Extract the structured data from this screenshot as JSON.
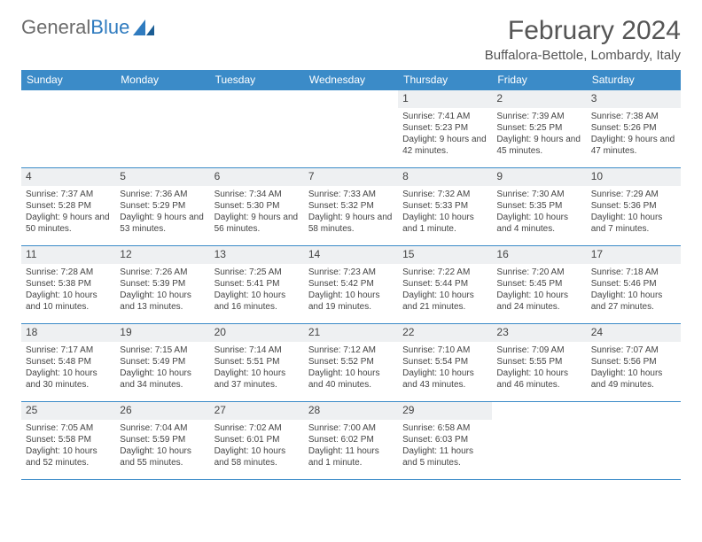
{
  "brand": {
    "part1": "General",
    "part2": "Blue"
  },
  "title": "February 2024",
  "location": "Buffalora-Bettole, Lombardy, Italy",
  "header_color": "#3b8bc8",
  "daynum_bg": "#eef0f2",
  "weekdays": [
    "Sunday",
    "Monday",
    "Tuesday",
    "Wednesday",
    "Thursday",
    "Friday",
    "Saturday"
  ],
  "days": {
    "1": {
      "sunrise": "Sunrise: 7:41 AM",
      "sunset": "Sunset: 5:23 PM",
      "daylight": "Daylight: 9 hours and 42 minutes."
    },
    "2": {
      "sunrise": "Sunrise: 7:39 AM",
      "sunset": "Sunset: 5:25 PM",
      "daylight": "Daylight: 9 hours and 45 minutes."
    },
    "3": {
      "sunrise": "Sunrise: 7:38 AM",
      "sunset": "Sunset: 5:26 PM",
      "daylight": "Daylight: 9 hours and 47 minutes."
    },
    "4": {
      "sunrise": "Sunrise: 7:37 AM",
      "sunset": "Sunset: 5:28 PM",
      "daylight": "Daylight: 9 hours and 50 minutes."
    },
    "5": {
      "sunrise": "Sunrise: 7:36 AM",
      "sunset": "Sunset: 5:29 PM",
      "daylight": "Daylight: 9 hours and 53 minutes."
    },
    "6": {
      "sunrise": "Sunrise: 7:34 AM",
      "sunset": "Sunset: 5:30 PM",
      "daylight": "Daylight: 9 hours and 56 minutes."
    },
    "7": {
      "sunrise": "Sunrise: 7:33 AM",
      "sunset": "Sunset: 5:32 PM",
      "daylight": "Daylight: 9 hours and 58 minutes."
    },
    "8": {
      "sunrise": "Sunrise: 7:32 AM",
      "sunset": "Sunset: 5:33 PM",
      "daylight": "Daylight: 10 hours and 1 minute."
    },
    "9": {
      "sunrise": "Sunrise: 7:30 AM",
      "sunset": "Sunset: 5:35 PM",
      "daylight": "Daylight: 10 hours and 4 minutes."
    },
    "10": {
      "sunrise": "Sunrise: 7:29 AM",
      "sunset": "Sunset: 5:36 PM",
      "daylight": "Daylight: 10 hours and 7 minutes."
    },
    "11": {
      "sunrise": "Sunrise: 7:28 AM",
      "sunset": "Sunset: 5:38 PM",
      "daylight": "Daylight: 10 hours and 10 minutes."
    },
    "12": {
      "sunrise": "Sunrise: 7:26 AM",
      "sunset": "Sunset: 5:39 PM",
      "daylight": "Daylight: 10 hours and 13 minutes."
    },
    "13": {
      "sunrise": "Sunrise: 7:25 AM",
      "sunset": "Sunset: 5:41 PM",
      "daylight": "Daylight: 10 hours and 16 minutes."
    },
    "14": {
      "sunrise": "Sunrise: 7:23 AM",
      "sunset": "Sunset: 5:42 PM",
      "daylight": "Daylight: 10 hours and 19 minutes."
    },
    "15": {
      "sunrise": "Sunrise: 7:22 AM",
      "sunset": "Sunset: 5:44 PM",
      "daylight": "Daylight: 10 hours and 21 minutes."
    },
    "16": {
      "sunrise": "Sunrise: 7:20 AM",
      "sunset": "Sunset: 5:45 PM",
      "daylight": "Daylight: 10 hours and 24 minutes."
    },
    "17": {
      "sunrise": "Sunrise: 7:18 AM",
      "sunset": "Sunset: 5:46 PM",
      "daylight": "Daylight: 10 hours and 27 minutes."
    },
    "18": {
      "sunrise": "Sunrise: 7:17 AM",
      "sunset": "Sunset: 5:48 PM",
      "daylight": "Daylight: 10 hours and 30 minutes."
    },
    "19": {
      "sunrise": "Sunrise: 7:15 AM",
      "sunset": "Sunset: 5:49 PM",
      "daylight": "Daylight: 10 hours and 34 minutes."
    },
    "20": {
      "sunrise": "Sunrise: 7:14 AM",
      "sunset": "Sunset: 5:51 PM",
      "daylight": "Daylight: 10 hours and 37 minutes."
    },
    "21": {
      "sunrise": "Sunrise: 7:12 AM",
      "sunset": "Sunset: 5:52 PM",
      "daylight": "Daylight: 10 hours and 40 minutes."
    },
    "22": {
      "sunrise": "Sunrise: 7:10 AM",
      "sunset": "Sunset: 5:54 PM",
      "daylight": "Daylight: 10 hours and 43 minutes."
    },
    "23": {
      "sunrise": "Sunrise: 7:09 AM",
      "sunset": "Sunset: 5:55 PM",
      "daylight": "Daylight: 10 hours and 46 minutes."
    },
    "24": {
      "sunrise": "Sunrise: 7:07 AM",
      "sunset": "Sunset: 5:56 PM",
      "daylight": "Daylight: 10 hours and 49 minutes."
    },
    "25": {
      "sunrise": "Sunrise: 7:05 AM",
      "sunset": "Sunset: 5:58 PM",
      "daylight": "Daylight: 10 hours and 52 minutes."
    },
    "26": {
      "sunrise": "Sunrise: 7:04 AM",
      "sunset": "Sunset: 5:59 PM",
      "daylight": "Daylight: 10 hours and 55 minutes."
    },
    "27": {
      "sunrise": "Sunrise: 7:02 AM",
      "sunset": "Sunset: 6:01 PM",
      "daylight": "Daylight: 10 hours and 58 minutes."
    },
    "28": {
      "sunrise": "Sunrise: 7:00 AM",
      "sunset": "Sunset: 6:02 PM",
      "daylight": "Daylight: 11 hours and 1 minute."
    },
    "29": {
      "sunrise": "Sunrise: 6:58 AM",
      "sunset": "Sunset: 6:03 PM",
      "daylight": "Daylight: 11 hours and 5 minutes."
    }
  },
  "layout": {
    "lead_blanks": 4,
    "total_days": 29,
    "trail_blanks": 2
  }
}
